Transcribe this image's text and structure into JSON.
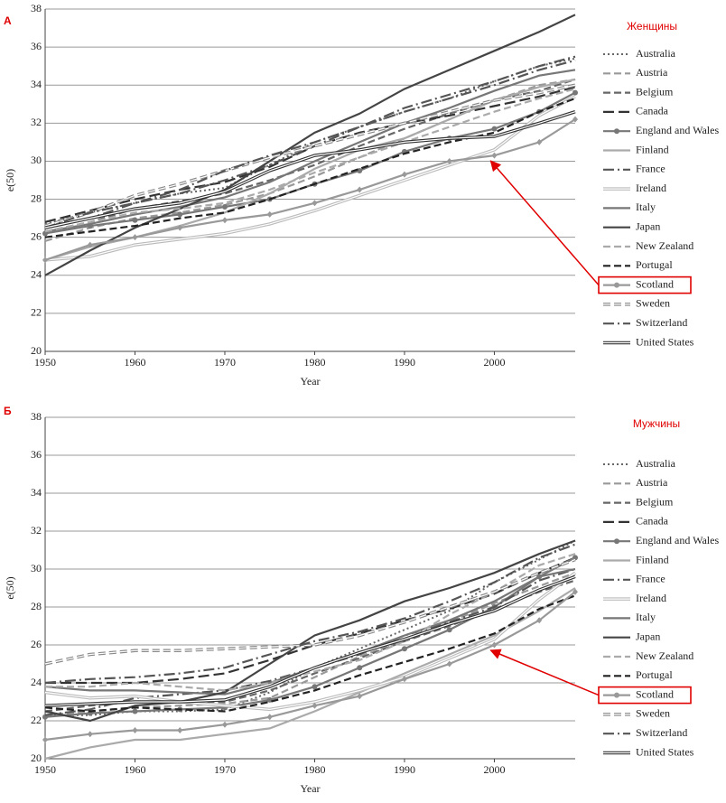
{
  "chart_data": [
    {
      "type": "line",
      "panel_label": "А",
      "title": "Женщины",
      "x_label": "Year",
      "y_label": "e(50)",
      "xlim": [
        1950,
        2009
      ],
      "ylim": [
        20,
        38
      ],
      "xticks": [
        1950,
        1960,
        1970,
        1980,
        1990,
        2000
      ],
      "yticks": [
        20,
        22,
        24,
        26,
        28,
        30,
        32,
        34,
        36,
        38
      ],
      "grid": true,
      "x": [
        1950,
        1955,
        1960,
        1965,
        1970,
        1975,
        1980,
        1985,
        1990,
        1995,
        2000,
        2005,
        2009
      ],
      "series": [
        {
          "name": "Australia",
          "color": "#666666",
          "style": "dotted",
          "values": [
            26.7,
            27.3,
            27.8,
            28.3,
            28.6,
            29.8,
            31,
            31.8,
            32.6,
            33.3,
            34.2,
            35,
            35.4
          ]
        },
        {
          "name": "Austria",
          "color": "#999999",
          "style": "dashed",
          "values": [
            25.8,
            26.5,
            27,
            27.3,
            27.7,
            28.3,
            29.2,
            30.2,
            31.2,
            32.2,
            33.2,
            34,
            34.3
          ]
        },
        {
          "name": "Belgium",
          "color": "#666666",
          "style": "dashed",
          "values": [
            26.3,
            26.8,
            27.5,
            27.9,
            28.3,
            29,
            29.8,
            30.8,
            31.7,
            32.5,
            33.2,
            33.7,
            34.3
          ]
        },
        {
          "name": "Canada",
          "color": "#333333",
          "style": "longdash",
          "values": [
            26.8,
            27.4,
            28,
            28.5,
            28.9,
            29.7,
            30.8,
            31.5,
            32,
            32.4,
            32.9,
            33.4,
            33.9
          ]
        },
        {
          "name": "England and Wales",
          "color": "#777777",
          "style": "solid",
          "marker": "circle",
          "values": [
            26.2,
            26.6,
            26.9,
            27.2,
            27.6,
            28,
            28.8,
            29.5,
            30.5,
            31.2,
            31.7,
            32.6,
            33.6
          ]
        },
        {
          "name": "Finland",
          "color": "#aaaaaa",
          "style": "solid",
          "values": [
            24.8,
            25.5,
            26,
            26.6,
            27.3,
            28.3,
            29.6,
            30.6,
            31.2,
            32.2,
            33.2,
            33.9,
            34.3
          ]
        },
        {
          "name": "France",
          "color": "#555555",
          "style": "dashdot",
          "values": [
            26.5,
            27,
            27.8,
            28.3,
            29,
            29.8,
            30.8,
            31.8,
            32.8,
            33.5,
            34.2,
            35,
            35.5
          ]
        },
        {
          "name": "Ireland",
          "color": "#bbbbbb",
          "style": "double",
          "values": [
            24.8,
            25,
            25.6,
            25.9,
            26.2,
            26.7,
            27.4,
            28.2,
            29,
            29.8,
            30.6,
            32.4,
            33.4
          ]
        },
        {
          "name": "Italy",
          "color": "#777777",
          "style": "solid",
          "values": [
            26.3,
            26.7,
            27.2,
            27.6,
            28.1,
            28.9,
            30,
            31,
            32,
            32.8,
            33.7,
            34.5,
            34.8
          ]
        },
        {
          "name": "Japan",
          "color": "#444444",
          "style": "solid",
          "values": [
            24,
            25.3,
            26.5,
            27.5,
            28.5,
            30,
            31.5,
            32.5,
            33.8,
            34.8,
            35.8,
            36.8,
            37.7
          ]
        },
        {
          "name": "New Zealand",
          "color": "#aaaaaa",
          "style": "dashed",
          "values": [
            26.3,
            26.8,
            27.3,
            27.5,
            27.8,
            28.5,
            29.4,
            30.2,
            31,
            31.8,
            32.6,
            33.3,
            33.8
          ]
        },
        {
          "name": "Portugal",
          "color": "#222222",
          "style": "dashed",
          "values": [
            26,
            26.3,
            26.6,
            27,
            27.3,
            28,
            28.8,
            29.6,
            30.4,
            31,
            31.5,
            32.6,
            33.3
          ]
        },
        {
          "name": "Scotland",
          "color": "#999999",
          "style": "solid",
          "marker": "diamond",
          "highlight": true,
          "values": [
            24.8,
            25.6,
            26,
            26.5,
            26.9,
            27.2,
            27.8,
            28.5,
            29.3,
            30,
            30.3,
            31,
            32.2
          ]
        },
        {
          "name": "Sweden",
          "color": "#888888",
          "style": "doubledash",
          "values": [
            26.6,
            27.3,
            28.2,
            28.8,
            29.5,
            30.2,
            30.8,
            31.4,
            32,
            32.6,
            33.2,
            33.6,
            34
          ]
        },
        {
          "name": "Switzerland",
          "color": "#555555",
          "style": "dashdot",
          "values": [
            26.5,
            27.3,
            27.8,
            28.5,
            29.5,
            30.3,
            31,
            31.8,
            32.6,
            33.3,
            34,
            34.8,
            35.3
          ]
        },
        {
          "name": "United States",
          "color": "#333333",
          "style": "double",
          "values": [
            26.5,
            27,
            27.5,
            27.8,
            28.4,
            29.5,
            30.3,
            30.6,
            31,
            31.2,
            31.3,
            32,
            32.6
          ]
        }
      ]
    },
    {
      "type": "line",
      "panel_label": "Б",
      "title": "Мужчины",
      "x_label": "Year",
      "y_label": "e(50)",
      "xlim": [
        1950,
        2009
      ],
      "ylim": [
        20,
        38
      ],
      "xticks": [
        1950,
        1960,
        1970,
        1980,
        1990,
        2000
      ],
      "yticks": [
        20,
        22,
        24,
        26,
        28,
        30,
        32,
        34,
        36,
        38
      ],
      "grid": true,
      "x": [
        1950,
        1955,
        1960,
        1965,
        1970,
        1975,
        1980,
        1985,
        1990,
        1995,
        2000,
        2005,
        2009
      ],
      "series": [
        {
          "name": "Australia",
          "color": "#666666",
          "style": "dotted",
          "values": [
            22.3,
            22.3,
            22.5,
            22.5,
            22.6,
            23.5,
            24.8,
            25.8,
            26.8,
            27.8,
            29.3,
            30.5,
            31.5
          ]
        },
        {
          "name": "Austria",
          "color": "#999999",
          "style": "dashed",
          "values": [
            22.3,
            22.5,
            22.7,
            22.8,
            22.9,
            23.2,
            24.3,
            25.4,
            26.2,
            27.2,
            28.2,
            29.1,
            29.8
          ]
        },
        {
          "name": "Belgium",
          "color": "#666666",
          "style": "dashed",
          "values": [
            22.5,
            22.8,
            23,
            23,
            23,
            23.6,
            24.5,
            25.3,
            26.2,
            27,
            27.9,
            28.8,
            29.4
          ]
        },
        {
          "name": "Canada",
          "color": "#333333",
          "style": "longdash",
          "values": [
            24,
            24,
            24,
            24.2,
            24.5,
            25.2,
            26,
            26.6,
            27.3,
            27.9,
            28.7,
            29.8,
            30.6
          ]
        },
        {
          "name": "England and Wales",
          "color": "#777777",
          "style": "solid",
          "marker": "circle",
          "values": [
            22.2,
            22.4,
            22.5,
            22.6,
            22.7,
            23.1,
            23.8,
            24.8,
            25.8,
            26.8,
            28,
            29.6,
            30.6
          ]
        },
        {
          "name": "Finland",
          "color": "#aaaaaa",
          "style": "solid",
          "values": [
            20,
            20.6,
            21,
            21,
            21.3,
            21.6,
            22.5,
            23.5,
            24.5,
            25.5,
            26.5,
            27.8,
            29
          ]
        },
        {
          "name": "France",
          "color": "#555555",
          "style": "dashdot",
          "values": [
            22.3,
            22.6,
            23.2,
            23.4,
            23.6,
            24.1,
            24.8,
            25.5,
            26.5,
            27.2,
            28,
            29.4,
            30
          ]
        },
        {
          "name": "Ireland",
          "color": "#bbbbbb",
          "style": "double",
          "values": [
            23.5,
            23.2,
            23.3,
            23,
            22.8,
            22.6,
            23,
            23.6,
            24.3,
            25.3,
            26.3,
            28.4,
            29.8
          ]
        },
        {
          "name": "Italy",
          "color": "#777777",
          "style": "solid",
          "values": [
            23.8,
            23.6,
            23.6,
            23.5,
            23.4,
            24,
            24.8,
            25.6,
            26.5,
            27.3,
            28.3,
            29.6,
            30
          ]
        },
        {
          "name": "Japan",
          "color": "#444444",
          "style": "solid",
          "values": [
            22.5,
            22,
            22.8,
            23,
            23.5,
            25,
            26.5,
            27.3,
            28.3,
            29,
            29.8,
            30.8,
            31.5
          ]
        },
        {
          "name": "New Zealand",
          "color": "#aaaaaa",
          "style": "dashed",
          "values": [
            23.8,
            23.8,
            24,
            23.8,
            23.6,
            24,
            24.6,
            25.2,
            26.2,
            27.6,
            28.8,
            30.2,
            30.8
          ]
        },
        {
          "name": "Portugal",
          "color": "#222222",
          "style": "dashed",
          "values": [
            22.7,
            22.5,
            22.7,
            22.6,
            22.5,
            23,
            23.6,
            24.4,
            25.1,
            25.8,
            26.6,
            27.9,
            28.6
          ]
        },
        {
          "name": "Scotland",
          "color": "#999999",
          "style": "solid",
          "marker": "diamond",
          "highlight": true,
          "values": [
            21,
            21.3,
            21.5,
            21.5,
            21.8,
            22.2,
            22.8,
            23.3,
            24.2,
            25,
            26,
            27.3,
            28.8
          ]
        },
        {
          "name": "Sweden",
          "color": "#888888",
          "style": "doubledash",
          "values": [
            25,
            25.5,
            25.7,
            25.7,
            25.8,
            25.9,
            26,
            26.5,
            27.2,
            28,
            28.8,
            29.8,
            30.5
          ]
        },
        {
          "name": "Switzerland",
          "color": "#555555",
          "style": "dashdot",
          "values": [
            24,
            24.2,
            24.3,
            24.5,
            24.8,
            25.5,
            26.2,
            26.7,
            27.4,
            28.3,
            29.3,
            30.6,
            31.3
          ]
        },
        {
          "name": "United States",
          "color": "#333333",
          "style": "double",
          "values": [
            22.8,
            22.9,
            23,
            23,
            23.1,
            23.8,
            24.8,
            25.6,
            26.3,
            27.1,
            27.8,
            28.9,
            29.6
          ]
        }
      ]
    }
  ]
}
